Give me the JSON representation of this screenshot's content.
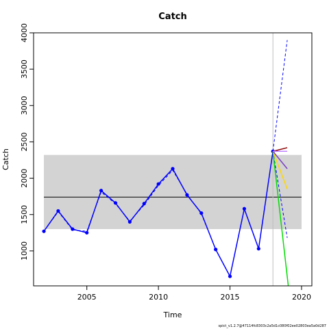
{
  "chart_data": {
    "type": "line",
    "title": "Catch",
    "xlabel": "Time",
    "ylabel": "Catch",
    "note": "spict_v1.2.7@47114fc8303c2a5d1c080f02ee02803ea5a0d287",
    "xlim": [
      2001.28,
      2020.72
    ],
    "ylim": [
      519,
      4000
    ],
    "xticks": [
      2005,
      2010,
      2015,
      2020
    ],
    "yticks": [
      1000,
      1500,
      2000,
      2500,
      3000,
      3500,
      4000
    ],
    "band": {
      "x": [
        2002,
        2020
      ],
      "y": [
        1300,
        2320
      ],
      "color": "#d3d3d3"
    },
    "hline": {
      "value": 1740,
      "color": "#000000"
    },
    "vline": {
      "value": 2018,
      "color": "#bebebe"
    },
    "series": [
      {
        "color": "#0000ff",
        "dash": true,
        "points": false,
        "x": [
          2002,
          2003,
          2004,
          2005,
          2006,
          2007,
          2008,
          2009,
          2010,
          2011,
          2012,
          2013,
          2014,
          2015,
          2016,
          2017,
          2018
        ],
        "values": [
          1270,
          1540,
          1290,
          1270,
          1810,
          1650,
          1410,
          1630,
          1900,
          2110,
          1780,
          1510,
          1020,
          650,
          1570,
          1040,
          2360
        ]
      },
      {
        "color": "#0000ff",
        "dash": false,
        "points": true,
        "x": [
          2002,
          2003,
          2004,
          2005,
          2006,
          2007,
          2008,
          2009,
          2010,
          2011,
          2012,
          2013,
          2014,
          2015,
          2016,
          2017,
          2018
        ],
        "values": [
          1270,
          1550,
          1300,
          1250,
          1830,
          1660,
          1400,
          1650,
          1920,
          2130,
          1770,
          1520,
          1020,
          650,
          1580,
          1030,
          2370
        ]
      },
      {
        "color": "#0000ff",
        "dash": true,
        "points": false,
        "x": [
          2018,
          2019
        ],
        "values": [
          2370,
          3900
        ]
      },
      {
        "color": "#0000ff",
        "dash": true,
        "points": false,
        "x": [
          2018,
          2019
        ],
        "values": [
          2370,
          1180
        ]
      },
      {
        "color": "#00dd00",
        "dash": false,
        "points": false,
        "x": [
          2018,
          2019.2
        ],
        "values": [
          2370,
          300
        ]
      },
      {
        "color": "#ffd700",
        "dash": false,
        "points": false,
        "x": [
          2018,
          2019
        ],
        "values": [
          2370,
          1850
        ]
      },
      {
        "color": "#7b3fbf",
        "dash": false,
        "points": false,
        "x": [
          2018,
          2019
        ],
        "values": [
          2370,
          2130
        ]
      },
      {
        "color": "#8b0000",
        "dash": false,
        "points": false,
        "x": [
          2018,
          2019
        ],
        "values": [
          2370,
          2420
        ]
      },
      {
        "color": "#c080ff",
        "dash": false,
        "points": false,
        "x": [
          2018,
          2019
        ],
        "values": [
          2370,
          2370
        ]
      }
    ]
  }
}
